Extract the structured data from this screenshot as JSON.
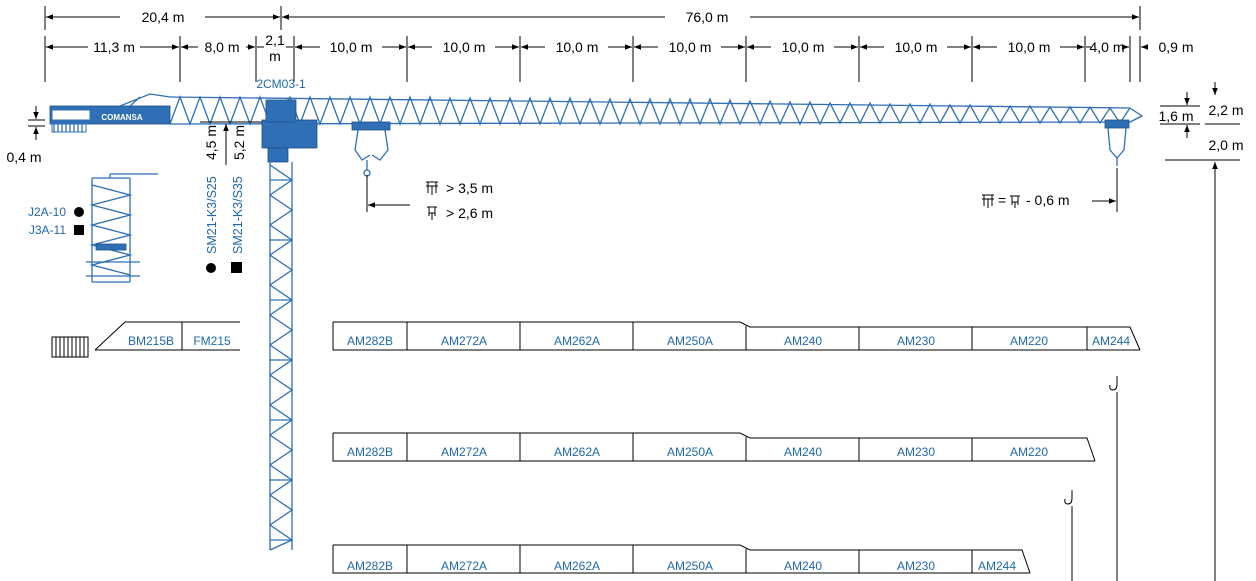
{
  "dimensions": {
    "counter_total": "20,4 m",
    "jib_total": "76,0 m",
    "counter_segments": [
      "11,3 m",
      "8,0 m"
    ],
    "mast_width_top": "2,1",
    "mast_width_bottom": "m",
    "jib_segments": [
      "10,0 m",
      "10,0 m",
      "10,0 m",
      "10,0 m",
      "10,0 m",
      "10,0 m",
      "10,0 m",
      "4,0 m"
    ],
    "tip_extra": "0,9 m",
    "counterjib_offset": "0,4 m",
    "cathead_height_1": "4,5 m",
    "cathead_height_2": "5,2 m",
    "jib_height": "1,6 m",
    "tip_height": "2,2 m",
    "tip_hook_clearance": "2,0 m"
  },
  "crane": {
    "model": "2CM03-1",
    "brand": "COMANSA"
  },
  "hook_notes": {
    "line_1_value": "> 3,5 m",
    "line_2_value": "> 2,6 m",
    "tip_formula_left": "=",
    "tip_formula_right": "- 0,6 m"
  },
  "legend_left": {
    "items": [
      {
        "label": "J2A-10",
        "marker": "circle"
      },
      {
        "label": "J3A-11",
        "marker": "square"
      }
    ]
  },
  "mast_sections": {
    "items": [
      {
        "label": "SM21-K3/S25",
        "marker": "circle"
      },
      {
        "label": "SM21-K3/S35",
        "marker": "square"
      }
    ]
  },
  "counterjib_sections": [
    "BM215B",
    "FM215"
  ],
  "jib_configurations": [
    {
      "sections": [
        "AM282B",
        "AM272A",
        "AM262A",
        "AM250A",
        "AM240",
        "AM230",
        "AM220",
        "AM244"
      ]
    },
    {
      "sections": [
        "AM282B",
        "AM272A",
        "AM262A",
        "AM250A",
        "AM240",
        "AM230",
        "AM220"
      ]
    },
    {
      "sections": [
        "AM282B",
        "AM272A",
        "AM262A",
        "AM250A",
        "AM240",
        "AM230",
        "AM244"
      ]
    }
  ],
  "colors": {
    "crane_blue": "#2f6fb5",
    "label_blue": "#1f68ad",
    "line_black": "#000000"
  }
}
